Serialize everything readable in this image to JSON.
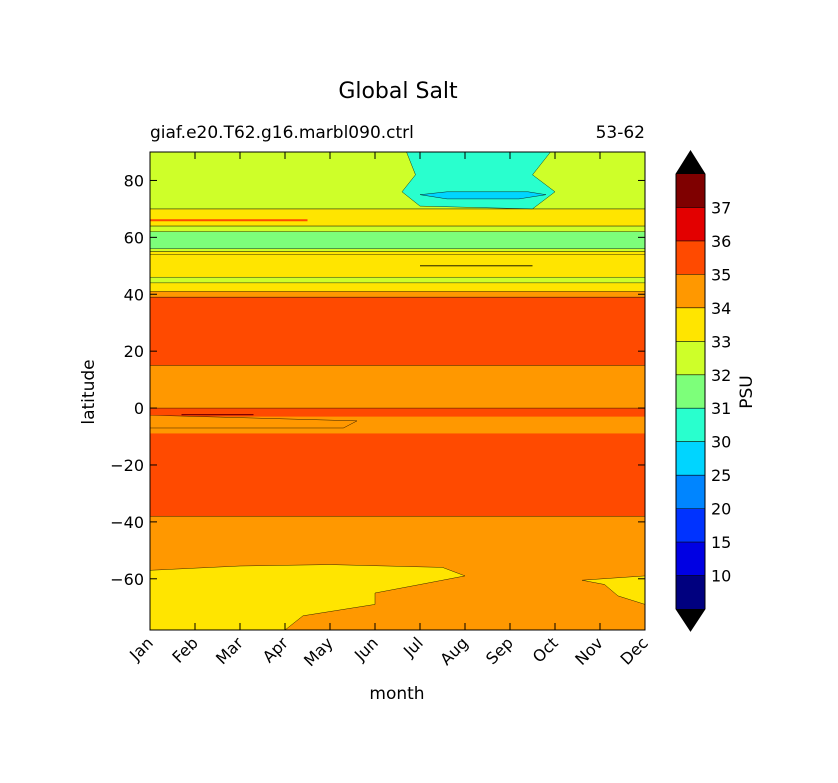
{
  "chart_data": {
    "type": "filled-contour",
    "title": "Global Salt",
    "subtitle_left": "giaf.e20.T62.g16.marbl090.ctrl",
    "subtitle_right": "53-62",
    "xlabel": "month",
    "ylabel": "latitude",
    "colorbar_label": "PSU",
    "x_categories": [
      "Jan",
      "Feb",
      "Mar",
      "Apr",
      "May",
      "Jun",
      "Jul",
      "Aug",
      "Sep",
      "Oct",
      "Nov",
      "Dec"
    ],
    "y_ticks": [
      80,
      60,
      40,
      20,
      0,
      -20,
      -40,
      -60
    ],
    "y_tick_labels": [
      "80",
      "60",
      "40",
      "20",
      "0",
      "−20",
      "−40",
      "−60"
    ],
    "ylim": [
      -78,
      90
    ],
    "levels": [
      5,
      10,
      15,
      20,
      25,
      30,
      31,
      32,
      33,
      34,
      35,
      36,
      37,
      38
    ],
    "level_labels": [
      "10",
      "15",
      "20",
      "25",
      "30",
      "31",
      "32",
      "33",
      "34",
      "35",
      "36",
      "37"
    ],
    "colors": [
      "#00007f",
      "#0000e3",
      "#0033ff",
      "#0085ff",
      "#00d5ff",
      "#29ffce",
      "#7dff7a",
      "#ceff29",
      "#ffe500",
      "#ff9800",
      "#ff4a00",
      "#e30000",
      "#7f0000"
    ],
    "extend": "both",
    "grid": false,
    "bands": [
      {
        "level": "34-35",
        "lat_min": -78,
        "lat_max": 90
      },
      {
        "level": "35-36",
        "lat_min": -38,
        "lat_max": 0
      },
      {
        "level": "35-36",
        "lat_min": 15,
        "lat_max": 39
      },
      {
        "level": "33-34",
        "lat_min": 40,
        "lat_max": 55
      },
      {
        "level": "32-33",
        "lat_min": 55,
        "lat_max": 64
      },
      {
        "level": "33-34",
        "lat_min": 64,
        "lat_max": 70
      },
      {
        "level": "32-33",
        "lat_min": 70,
        "lat_max": 90
      }
    ],
    "patches": [
      {
        "level": "33-34",
        "region": "south-west",
        "lat_range": [
          -78,
          -55
        ],
        "months": [
          "Jan",
          "Jul"
        ]
      },
      {
        "level": "33-34",
        "region": "south-east",
        "lat_range": [
          -72,
          -58
        ],
        "months": [
          "Nov",
          "Dec"
        ]
      },
      {
        "level": "30-31",
        "region": "north",
        "lat_range": [
          70,
          90
        ],
        "months": [
          "Jun",
          "Oct"
        ]
      },
      {
        "level": "25-30",
        "region": "north",
        "lat_range": [
          73,
          76
        ],
        "months": [
          "Jul",
          "Sep"
        ]
      },
      {
        "level": "31-32",
        "region": "north",
        "lat_range": [
          56,
          62
        ],
        "months": [
          "Jan",
          "Dec"
        ]
      }
    ]
  }
}
